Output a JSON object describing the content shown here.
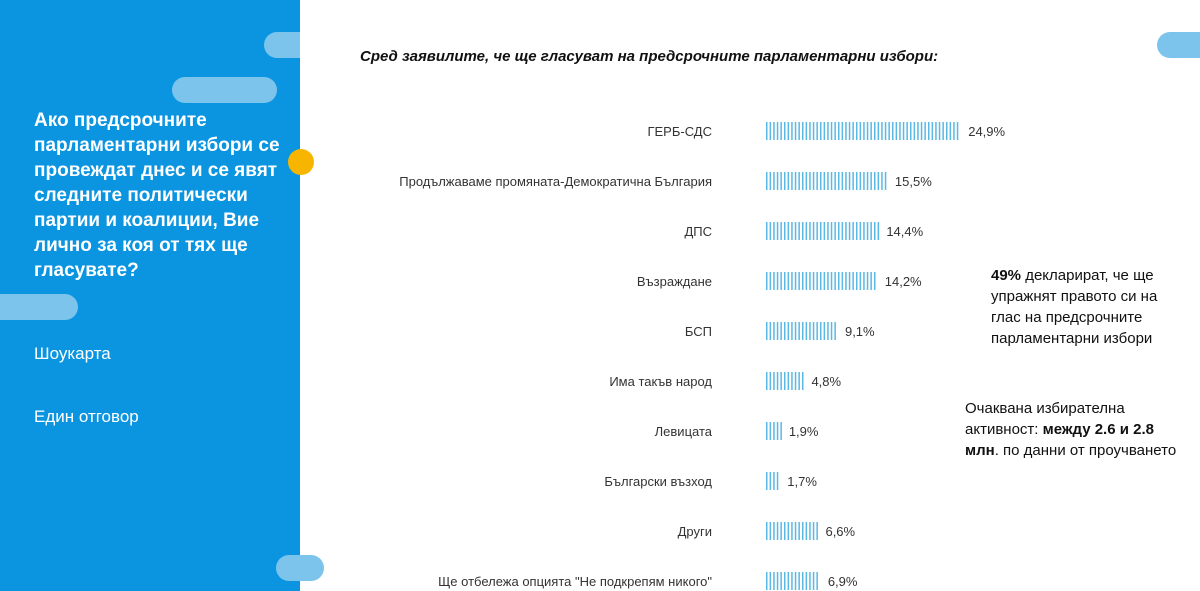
{
  "sidebar": {
    "question": "Ако предсрочните парламентарни избори се провеждат днес и се явят следните политически партии и коалиции, Вие лично за коя от тях ще гласувате?",
    "method": "Шоукарта",
    "answer_type": "Един отговор",
    "background_color": "#0b95e0",
    "pill_color": "#7cc4ec",
    "dot_color": "#f7b500"
  },
  "chart_data": {
    "type": "bar",
    "orientation": "horizontal",
    "title": "Сред заявилите, че ще гласуват на предсрочните  парламентарни избори:",
    "categories": [
      "ГЕРБ-СДС",
      "Продължаваме промяната-Демократична България",
      "ДПС",
      "Възраждане",
      "БСП",
      "Има такъв народ",
      "Левицата",
      "Български възход",
      "Други",
      "Ще отбележа опцията \"Не подкрепям никого\""
    ],
    "values": [
      24.9,
      15.5,
      14.4,
      14.2,
      9.1,
      4.8,
      1.9,
      1.7,
      6.6,
      6.9
    ],
    "value_labels": [
      "24,9%",
      "15,5%",
      "14,4%",
      "14,2%",
      "9,1%",
      "4,8%",
      "1,9%",
      "1,7%",
      "6,6%",
      "6,9%"
    ],
    "bar_color": "#5ab8e4",
    "grid": false,
    "legend": "none"
  },
  "notes": {
    "turnout_declared_value": "49%",
    "turnout_declared_text": " декларират, че ще упражнят правото си на глас на предсрочните парламентарни избори",
    "expected_prefix": "Очаквана избирателна активност: ",
    "expected_bold": "между 2.6 и 2.8 млн",
    "expected_suffix": ". по данни от проучването"
  }
}
